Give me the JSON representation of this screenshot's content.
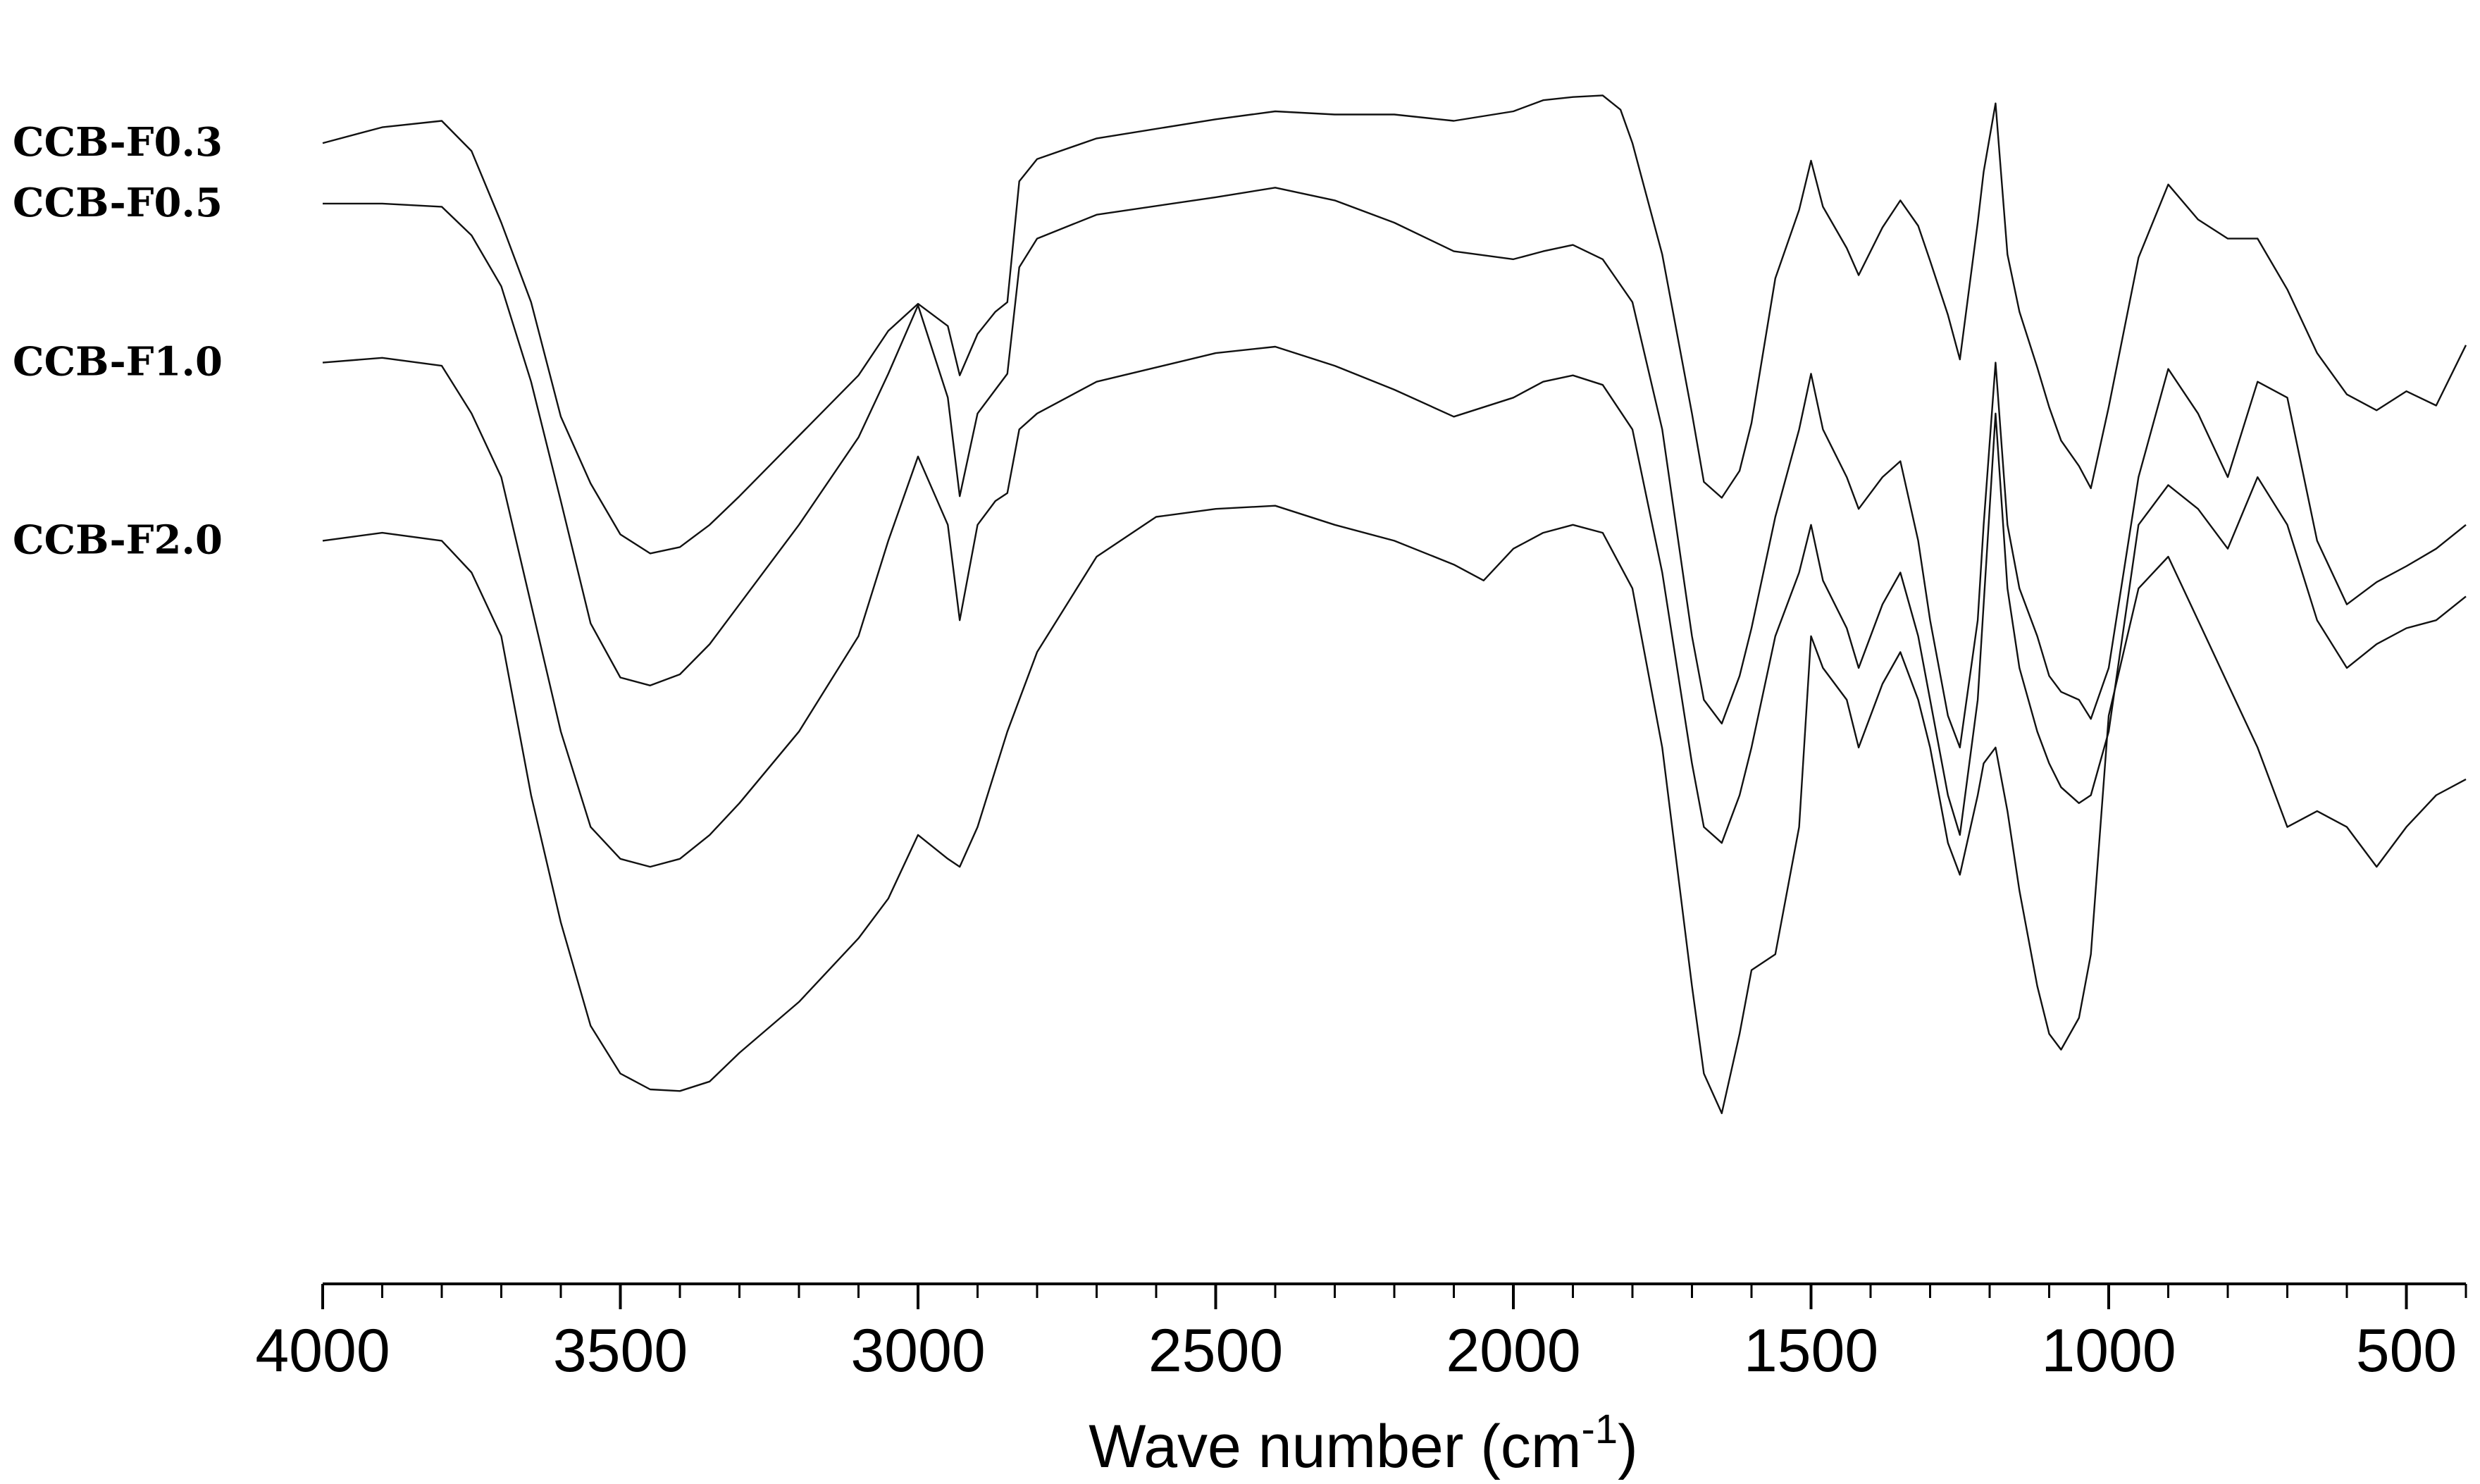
{
  "chart_data": {
    "type": "line",
    "xlabel": "Wave number (cm",
    "xlabel_sup": "-1",
    "xlabel_tail": ")",
    "xlim": [
      4000,
      400
    ],
    "x_reversed": true,
    "x_ticks": [
      4000,
      3500,
      3000,
      2500,
      2000,
      1500,
      1000,
      500
    ],
    "y_axis_shown": false,
    "grid": false,
    "legend": "none (series labeled at left end of each curve)",
    "series": [
      {
        "name": "CCB-F0.3",
        "points": [
          [
            4000,
            90
          ],
          [
            3900,
            80
          ],
          [
            3800,
            76
          ],
          [
            3750,
            95
          ],
          [
            3700,
            140
          ],
          [
            3650,
            190
          ],
          [
            3600,
            262
          ],
          [
            3550,
            304
          ],
          [
            3500,
            336
          ],
          [
            3450,
            348
          ],
          [
            3400,
            344
          ],
          [
            3350,
            330
          ],
          [
            3300,
            312
          ],
          [
            3200,
            274
          ],
          [
            3100,
            236
          ],
          [
            3050,
            208
          ],
          [
            3000,
            191
          ],
          [
            2950,
            205
          ],
          [
            2930,
            236
          ],
          [
            2900,
            210
          ],
          [
            2870,
            196
          ],
          [
            2850,
            190
          ],
          [
            2830,
            114
          ],
          [
            2800,
            100
          ],
          [
            2700,
            87
          ],
          [
            2500,
            75
          ],
          [
            2400,
            70
          ],
          [
            2300,
            72
          ],
          [
            2200,
            72
          ],
          [
            2100,
            76
          ],
          [
            2000,
            70
          ],
          [
            1950,
            63
          ],
          [
            1900,
            61
          ],
          [
            1850,
            60
          ],
          [
            1820,
            69
          ],
          [
            1800,
            90
          ],
          [
            1750,
            160
          ],
          [
            1700,
            260
          ],
          [
            1680,
            303
          ],
          [
            1650,
            313
          ],
          [
            1620,
            296
          ],
          [
            1600,
            266
          ],
          [
            1560,
            175
          ],
          [
            1520,
            132
          ],
          [
            1500,
            101
          ],
          [
            1480,
            130
          ],
          [
            1440,
            156
          ],
          [
            1420,
            173
          ],
          [
            1380,
            143
          ],
          [
            1350,
            126
          ],
          [
            1320,
            142
          ],
          [
            1300,
            164
          ],
          [
            1270,
            198
          ],
          [
            1250,
            226
          ],
          [
            1220,
            140
          ],
          [
            1210,
            108
          ],
          [
            1190,
            65
          ],
          [
            1170,
            160
          ],
          [
            1150,
            196
          ],
          [
            1120,
            231
          ],
          [
            1100,
            256
          ],
          [
            1080,
            277
          ],
          [
            1050,
            293
          ],
          [
            1030,
            307
          ],
          [
            1000,
            256
          ],
          [
            950,
            162
          ],
          [
            900,
            116
          ],
          [
            850,
            138
          ],
          [
            800,
            150
          ],
          [
            750,
            150
          ],
          [
            700,
            182
          ],
          [
            650,
            222
          ],
          [
            600,
            248
          ],
          [
            550,
            258
          ],
          [
            500,
            246
          ],
          [
            450,
            255
          ],
          [
            400,
            217
          ]
        ]
      },
      {
        "name": "CCB-F0.5",
        "points": [
          [
            4000,
            128
          ],
          [
            3900,
            128
          ],
          [
            3800,
            130
          ],
          [
            3750,
            148
          ],
          [
            3700,
            180
          ],
          [
            3650,
            240
          ],
          [
            3600,
            315
          ],
          [
            3550,
            392
          ],
          [
            3500,
            426
          ],
          [
            3450,
            431
          ],
          [
            3400,
            424
          ],
          [
            3350,
            405
          ],
          [
            3300,
            380
          ],
          [
            3200,
            330
          ],
          [
            3100,
            275
          ],
          [
            3050,
            235
          ],
          [
            3000,
            192
          ],
          [
            2950,
            250
          ],
          [
            2930,
            312
          ],
          [
            2900,
            260
          ],
          [
            2870,
            245
          ],
          [
            2850,
            235
          ],
          [
            2830,
            168
          ],
          [
            2800,
            150
          ],
          [
            2700,
            135
          ],
          [
            2500,
            124
          ],
          [
            2400,
            118
          ],
          [
            2300,
            126
          ],
          [
            2200,
            140
          ],
          [
            2100,
            158
          ],
          [
            2000,
            163
          ],
          [
            1950,
            158
          ],
          [
            1900,
            154
          ],
          [
            1850,
            163
          ],
          [
            1800,
            190
          ],
          [
            1750,
            270
          ],
          [
            1700,
            400
          ],
          [
            1680,
            440
          ],
          [
            1650,
            455
          ],
          [
            1620,
            425
          ],
          [
            1600,
            395
          ],
          [
            1560,
            325
          ],
          [
            1520,
            270
          ],
          [
            1500,
            235
          ],
          [
            1480,
            270
          ],
          [
            1440,
            300
          ],
          [
            1420,
            320
          ],
          [
            1380,
            300
          ],
          [
            1350,
            290
          ],
          [
            1320,
            340
          ],
          [
            1300,
            390
          ],
          [
            1270,
            450
          ],
          [
            1250,
            470
          ],
          [
            1220,
            390
          ],
          [
            1210,
            330
          ],
          [
            1190,
            228
          ],
          [
            1170,
            330
          ],
          [
            1150,
            370
          ],
          [
            1120,
            400
          ],
          [
            1100,
            425
          ],
          [
            1080,
            435
          ],
          [
            1050,
            440
          ],
          [
            1030,
            452
          ],
          [
            1000,
            420
          ],
          [
            950,
            300
          ],
          [
            900,
            232
          ],
          [
            850,
            260
          ],
          [
            800,
            300
          ],
          [
            750,
            240
          ],
          [
            700,
            250
          ],
          [
            650,
            340
          ],
          [
            600,
            380
          ],
          [
            550,
            366
          ],
          [
            500,
            356
          ],
          [
            450,
            345
          ],
          [
            400,
            330
          ]
        ]
      },
      {
        "name": "CCB-F1.0",
        "points": [
          [
            4000,
            228
          ],
          [
            3900,
            225
          ],
          [
            3800,
            230
          ],
          [
            3750,
            260
          ],
          [
            3700,
            300
          ],
          [
            3650,
            380
          ],
          [
            3600,
            460
          ],
          [
            3550,
            520
          ],
          [
            3500,
            540
          ],
          [
            3450,
            545
          ],
          [
            3400,
            540
          ],
          [
            3350,
            525
          ],
          [
            3300,
            505
          ],
          [
            3200,
            460
          ],
          [
            3100,
            400
          ],
          [
            3050,
            340
          ],
          [
            3000,
            287
          ],
          [
            2950,
            330
          ],
          [
            2930,
            390
          ],
          [
            2900,
            330
          ],
          [
            2870,
            315
          ],
          [
            2850,
            310
          ],
          [
            2830,
            270
          ],
          [
            2800,
            260
          ],
          [
            2700,
            240
          ],
          [
            2500,
            222
          ],
          [
            2400,
            218
          ],
          [
            2300,
            230
          ],
          [
            2200,
            245
          ],
          [
            2100,
            262
          ],
          [
            2000,
            250
          ],
          [
            1950,
            240
          ],
          [
            1900,
            236
          ],
          [
            1850,
            242
          ],
          [
            1800,
            270
          ],
          [
            1750,
            360
          ],
          [
            1700,
            480
          ],
          [
            1680,
            520
          ],
          [
            1650,
            530
          ],
          [
            1620,
            500
          ],
          [
            1600,
            470
          ],
          [
            1560,
            400
          ],
          [
            1520,
            360
          ],
          [
            1500,
            330
          ],
          [
            1480,
            365
          ],
          [
            1440,
            395
          ],
          [
            1420,
            420
          ],
          [
            1380,
            380
          ],
          [
            1350,
            360
          ],
          [
            1320,
            400
          ],
          [
            1300,
            440
          ],
          [
            1270,
            500
          ],
          [
            1250,
            525
          ],
          [
            1220,
            440
          ],
          [
            1210,
            380
          ],
          [
            1190,
            260
          ],
          [
            1170,
            370
          ],
          [
            1150,
            420
          ],
          [
            1120,
            460
          ],
          [
            1100,
            480
          ],
          [
            1080,
            495
          ],
          [
            1050,
            505
          ],
          [
            1030,
            500
          ],
          [
            1000,
            460
          ],
          [
            950,
            330
          ],
          [
            900,
            305
          ],
          [
            850,
            320
          ],
          [
            800,
            345
          ],
          [
            750,
            300
          ],
          [
            700,
            330
          ],
          [
            650,
            390
          ],
          [
            600,
            420
          ],
          [
            550,
            405
          ],
          [
            500,
            395
          ],
          [
            450,
            390
          ],
          [
            400,
            375
          ]
        ]
      },
      {
        "name": "CCB-F2.0",
        "points": [
          [
            4000,
            340
          ],
          [
            3900,
            335
          ],
          [
            3800,
            340
          ],
          [
            3750,
            360
          ],
          [
            3700,
            400
          ],
          [
            3650,
            500
          ],
          [
            3600,
            580
          ],
          [
            3550,
            645
          ],
          [
            3500,
            675
          ],
          [
            3450,
            685
          ],
          [
            3400,
            686
          ],
          [
            3350,
            680
          ],
          [
            3300,
            662
          ],
          [
            3200,
            630
          ],
          [
            3100,
            590
          ],
          [
            3050,
            565
          ],
          [
            3000,
            525
          ],
          [
            2950,
            540
          ],
          [
            2930,
            545
          ],
          [
            2900,
            520
          ],
          [
            2850,
            460
          ],
          [
            2800,
            410
          ],
          [
            2700,
            350
          ],
          [
            2600,
            325
          ],
          [
            2500,
            320
          ],
          [
            2400,
            318
          ],
          [
            2300,
            330
          ],
          [
            2200,
            340
          ],
          [
            2100,
            355
          ],
          [
            2050,
            365
          ],
          [
            2000,
            345
          ],
          [
            1950,
            335
          ],
          [
            1900,
            330
          ],
          [
            1850,
            335
          ],
          [
            1800,
            370
          ],
          [
            1750,
            470
          ],
          [
            1700,
            620
          ],
          [
            1680,
            675
          ],
          [
            1650,
            700
          ],
          [
            1620,
            650
          ],
          [
            1600,
            610
          ],
          [
            1560,
            600
          ],
          [
            1520,
            520
          ],
          [
            1500,
            400
          ],
          [
            1480,
            420
          ],
          [
            1440,
            440
          ],
          [
            1420,
            470
          ],
          [
            1380,
            430
          ],
          [
            1350,
            410
          ],
          [
            1320,
            440
          ],
          [
            1300,
            470
          ],
          [
            1270,
            530
          ],
          [
            1250,
            550
          ],
          [
            1220,
            500
          ],
          [
            1210,
            480
          ],
          [
            1190,
            470
          ],
          [
            1170,
            510
          ],
          [
            1150,
            560
          ],
          [
            1120,
            620
          ],
          [
            1100,
            650
          ],
          [
            1080,
            660
          ],
          [
            1050,
            640
          ],
          [
            1030,
            600
          ],
          [
            1000,
            450
          ],
          [
            950,
            370
          ],
          [
            900,
            350
          ],
          [
            850,
            390
          ],
          [
            800,
            430
          ],
          [
            750,
            470
          ],
          [
            700,
            520
          ],
          [
            650,
            510
          ],
          [
            600,
            520
          ],
          [
            550,
            545
          ],
          [
            500,
            520
          ],
          [
            450,
            500
          ],
          [
            400,
            490
          ]
        ]
      }
    ]
  }
}
